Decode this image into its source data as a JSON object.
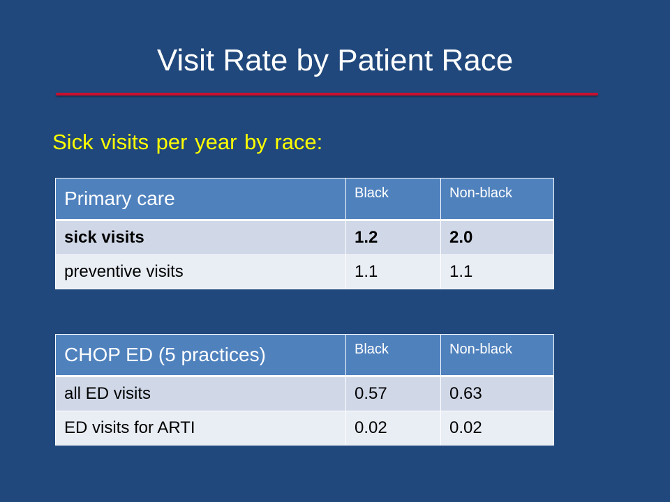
{
  "slide": {
    "title": "Visit Rate by Patient Race",
    "subtitle": "Sick visits per year by race:"
  },
  "table1": {
    "header": [
      "Primary care",
      "Black",
      "Non-black"
    ],
    "rows": [
      [
        "sick visits",
        "1.2",
        "2.0"
      ],
      [
        "preventive visits",
        "1.1",
        "1.1"
      ]
    ]
  },
  "table2": {
    "header": [
      "CHOP ED (5 practices)",
      "Black",
      "Non-black"
    ],
    "rows": [
      [
        "all ED visits",
        "0.57",
        "0.63"
      ],
      [
        "ED visits for ARTI",
        "0.02",
        "0.02"
      ]
    ]
  },
  "colors": {
    "background": "#20487c",
    "title": "#ffffff",
    "subtitle": "#ffff00",
    "divider": "#c8102e",
    "table_header": "#4f81bd",
    "row_odd": "#d0d8e8",
    "row_even": "#e9edf4"
  }
}
